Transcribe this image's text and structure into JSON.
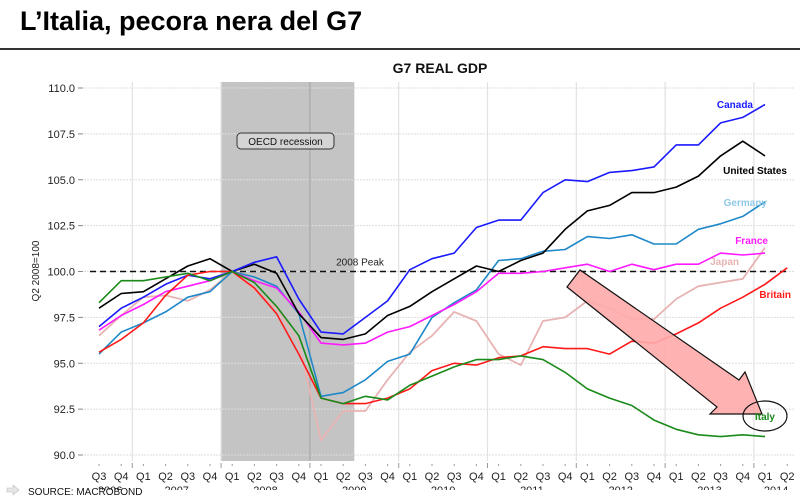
{
  "slide": {
    "title": "L’Italia, pecora nera del G7",
    "source": "SOURCE: MACROBOND"
  },
  "chart_data": {
    "type": "line",
    "title": "G7 REAL GDP",
    "xlabel": "",
    "ylabel": "Q2 2008=100",
    "ylim": [
      90,
      110
    ],
    "yticks": [
      "90.0",
      "92.5",
      "95.0",
      "97.5",
      "100.0",
      "102.5",
      "105.0",
      "107.5",
      "110.0"
    ],
    "ytick_values": [
      90,
      92.5,
      95,
      97.5,
      100,
      102.5,
      105,
      107.5,
      110
    ],
    "x_quarters": [
      "Q3",
      "Q4",
      "Q1",
      "Q2",
      "Q3",
      "Q4",
      "Q1",
      "Q2",
      "Q3",
      "Q4",
      "Q1",
      "Q2",
      "Q3",
      "Q4",
      "Q1",
      "Q2",
      "Q3",
      "Q4",
      "Q1",
      "Q2",
      "Q3",
      "Q4",
      "Q1",
      "Q2",
      "Q3",
      "Q4",
      "Q1",
      "Q2",
      "Q3",
      "Q4",
      "Q1",
      "Q2"
    ],
    "x_years": [
      {
        "label": "2006",
        "center_index": 0.5
      },
      {
        "label": "2007",
        "center_index": 3.5
      },
      {
        "label": "2008",
        "center_index": 7.5
      },
      {
        "label": "2009",
        "center_index": 11.5
      },
      {
        "label": "2010",
        "center_index": 15.5
      },
      {
        "label": "2011",
        "center_index": 19.5
      },
      {
        "label": "2012",
        "center_index": 23.5
      },
      {
        "label": "2013",
        "center_index": 27.5
      },
      {
        "label": "2014",
        "center_index": 30.5
      }
    ],
    "year_boundaries": [
      1.5,
      5.5,
      9.5,
      13.5,
      17.5,
      21.5,
      25.5,
      29.5
    ],
    "recession": {
      "label": "OECD recession",
      "start_index": 5.5,
      "end_index": 11.5,
      "divider_index": 9.5
    },
    "reference_line": {
      "label": "2008 Peak",
      "value": 100
    },
    "series": [
      {
        "name": "Canada",
        "color": "#1a1aff",
        "values": [
          97.0,
          98.0,
          98.6,
          99.3,
          99.8,
          99.6,
          100.0,
          100.5,
          100.8,
          98.5,
          96.7,
          96.6,
          97.5,
          98.4,
          100.1,
          100.7,
          101.0,
          102.4,
          102.8,
          102.8,
          104.3,
          105.0,
          104.9,
          105.4,
          105.5,
          105.7,
          106.9,
          106.9,
          108.1,
          108.4,
          109.1
        ]
      },
      {
        "name": "United States",
        "color": "#000000",
        "values": [
          98.0,
          98.8,
          98.9,
          99.6,
          100.3,
          100.7,
          100.0,
          100.4,
          99.9,
          97.7,
          96.4,
          96.3,
          96.6,
          97.6,
          98.1,
          98.9,
          99.6,
          100.3,
          100.0,
          100.6,
          101.0,
          102.3,
          103.3,
          103.6,
          104.3,
          104.3,
          104.6,
          105.2,
          106.3,
          107.1,
          106.3
        ]
      },
      {
        "name": "Germany",
        "color": "#1e88c8",
        "values": [
          95.5,
          96.7,
          97.2,
          97.8,
          98.6,
          98.9,
          100.0,
          99.7,
          99.2,
          97.7,
          93.2,
          93.4,
          94.1,
          95.1,
          95.5,
          97.5,
          98.3,
          99.0,
          100.6,
          100.7,
          101.1,
          101.2,
          101.9,
          101.8,
          102.0,
          101.5,
          101.5,
          102.3,
          102.6,
          103.0,
          103.8
        ]
      },
      {
        "name": "France",
        "color": "#ff1aff",
        "values": [
          96.8,
          97.6,
          98.2,
          98.9,
          99.2,
          99.5,
          100.0,
          99.5,
          99.1,
          97.8,
          96.1,
          96.0,
          96.1,
          96.7,
          97.0,
          97.6,
          98.2,
          98.9,
          99.9,
          99.9,
          100.0,
          100.2,
          100.4,
          100.0,
          100.4,
          100.1,
          100.4,
          100.4,
          101.0,
          100.9,
          101.0
        ]
      },
      {
        "name": "Japan",
        "color": "#e8b3b3",
        "values": [
          96.5,
          97.6,
          98.6,
          98.7,
          98.4,
          99.0,
          100.0,
          99.0,
          98.0,
          96.1,
          90.8,
          92.4,
          92.4,
          94.1,
          95.6,
          96.5,
          97.8,
          97.3,
          95.5,
          94.9,
          97.3,
          97.5,
          98.4,
          98.0,
          97.4,
          97.4,
          98.5,
          99.2,
          99.4,
          99.6,
          101.3
        ]
      },
      {
        "name": "Britain",
        "color": "#ff1a1a",
        "values": [
          95.6,
          96.3,
          97.2,
          98.7,
          99.8,
          100.0,
          100.0,
          99.1,
          97.7,
          95.5,
          93.1,
          92.8,
          92.8,
          93.1,
          93.6,
          94.6,
          95.0,
          94.9,
          95.3,
          95.4,
          95.9,
          95.8,
          95.8,
          95.5,
          96.2,
          96.1,
          96.6,
          97.2,
          98.0,
          98.6,
          99.3,
          100.2
        ]
      },
      {
        "name": "Italy",
        "color": "#1a8a1a",
        "values": [
          98.3,
          99.5,
          99.5,
          99.7,
          99.9,
          99.5,
          100.0,
          99.4,
          98.1,
          96.5,
          93.1,
          92.8,
          93.2,
          93.0,
          93.8,
          94.3,
          94.8,
          95.2,
          95.2,
          95.4,
          95.2,
          94.5,
          93.6,
          93.1,
          92.7,
          91.9,
          91.4,
          91.1,
          91.0,
          91.1,
          91.0
        ]
      }
    ],
    "labels": {
      "canada": "Canada",
      "united_states": "United States",
      "germany": "Germany",
      "france": "France",
      "japan": "Japan",
      "britain": "Britain",
      "italy": "Italy"
    },
    "grid": true,
    "legend": "inline-right"
  }
}
